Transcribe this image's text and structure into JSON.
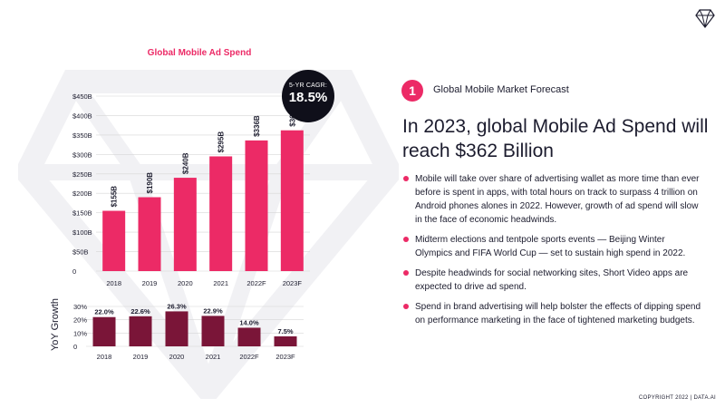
{
  "colors": {
    "accent": "#ec2a66",
    "dark": "#0f0f1a",
    "growth_bar": "#7a1538",
    "text": "#1c1c2e",
    "axis": "#c8c8c8"
  },
  "icons": {
    "logo": "diamond-icon"
  },
  "chart_data": [
    {
      "type": "bar",
      "title": "Global Mobile Ad Spend",
      "categories": [
        "2018",
        "2019",
        "2020",
        "2021",
        "2022F",
        "2023F"
      ],
      "values": [
        155,
        190,
        240,
        295,
        336,
        362
      ],
      "data_labels": [
        "$155B",
        "$190B",
        "$240B",
        "$295B",
        "$336B",
        "$362B"
      ],
      "yticks": [
        "0",
        "$50B",
        "$100B",
        "$150B",
        "$200B",
        "$250B",
        "$300B",
        "$350B",
        "$400B",
        "$450B"
      ],
      "ylim": [
        0,
        450
      ],
      "grid": true,
      "annotation": {
        "label": "5-YR CAGR:",
        "value": "18.5%"
      }
    },
    {
      "type": "bar",
      "ylabel": "YoY Growth",
      "categories": [
        "2018",
        "2019",
        "2020",
        "2021",
        "2022F",
        "2023F"
      ],
      "values": [
        22.0,
        22.6,
        26.3,
        22.9,
        14.0,
        7.5
      ],
      "data_labels": [
        "22.0%",
        "22.6%",
        "26.3%",
        "22.9%",
        "14.0%",
        "7.5%"
      ],
      "yticks": [
        "0",
        "10%",
        "20%",
        "30%"
      ],
      "ylim": [
        0,
        30
      ],
      "grid": true
    }
  ],
  "panel": {
    "number": "1",
    "label": "Global Mobile Market Forecast",
    "headline": "In 2023, global Mobile Ad Spend will reach $362 Billion",
    "bullets": [
      "Mobile will take over share of advertising wallet as more time than ever before is spent in apps, with total hours on track to surpass 4 trillion on Android phones alones in 2022. However, growth of ad spend will slow in the face of economic headwinds.",
      "Midterm elections and tentpole sports events — Beijing Winter Olympics and FIFA World Cup — set to sustain high spend in 2022.",
      "Despite headwinds for social networking sites, Short Video apps are expected to drive ad spend.",
      "Spend in brand advertising will help bolster the effects of dipping spend on performance marketing in the face of tightened marketing budgets."
    ]
  },
  "footer": {
    "copyright": "COPYRIGHT 2022 | DATA.AI"
  }
}
